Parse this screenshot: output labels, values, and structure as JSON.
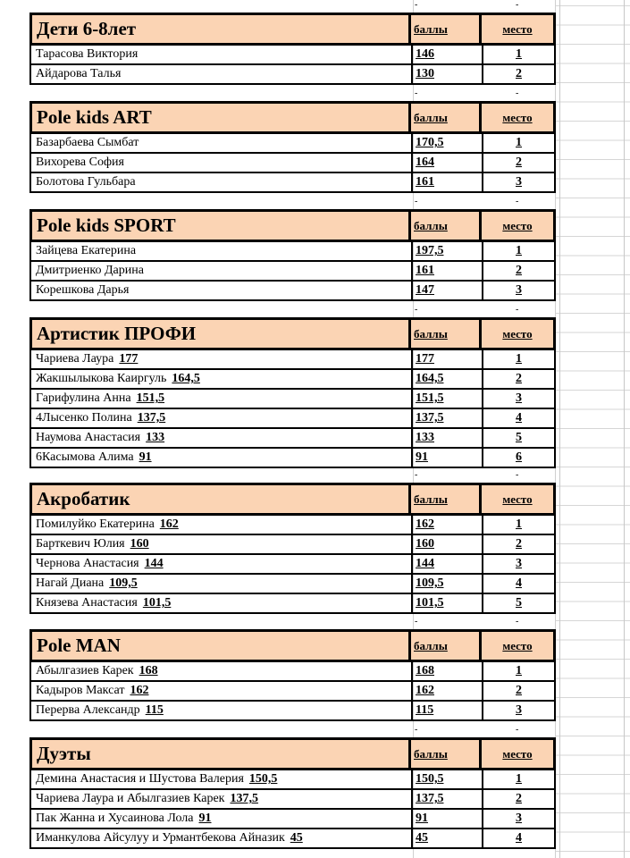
{
  "columns": {
    "score": "баллы",
    "place": "место"
  },
  "sections": [
    {
      "title": "Дети 6-8лет",
      "rows": [
        {
          "name": "Тарасова Виктория",
          "inline_score": "",
          "score": "146",
          "place": "1"
        },
        {
          "name": "Айдарова Талья",
          "inline_score": "",
          "score": "130",
          "place": "2"
        }
      ]
    },
    {
      "title": "Pole kids ART",
      "rows": [
        {
          "name": "Базарбаева Сымбат",
          "inline_score": "",
          "score": "170,5",
          "place": "1"
        },
        {
          "name": "Вихорева София",
          "inline_score": "",
          "score": "164",
          "place": "2"
        },
        {
          "name": "Болотова Гульбара",
          "inline_score": "",
          "score": "161",
          "place": "3"
        }
      ]
    },
    {
      "title": "Pole kids SPORT",
      "rows": [
        {
          "name": "Зайцева Екатерина",
          "inline_score": "",
          "score": "197,5",
          "place": "1"
        },
        {
          "name": "Дмитриенко Дарина",
          "inline_score": "",
          "score": "161",
          "place": "2"
        },
        {
          "name": "Корешкова Дарья",
          "inline_score": "",
          "score": "147",
          "place": "3"
        }
      ]
    },
    {
      "title": "Артистик ПРОФИ",
      "rows": [
        {
          "name": "Чариева Лаура",
          "inline_score": "177",
          "score": "177",
          "place": "1"
        },
        {
          "name": "Жакшылыкова Каиргуль",
          "inline_score": "164,5",
          "score": "164,5",
          "place": "2"
        },
        {
          "name": "Гарифулина  Анна",
          "inline_score": "151,5",
          "score": "151,5",
          "place": "3"
        },
        {
          "name": "4Лысенко Полина",
          "inline_score": "137,5",
          "score": "137,5",
          "place": "4"
        },
        {
          "name": "Наумова Анастасия",
          "inline_score": "133",
          "score": "133",
          "place": "5"
        },
        {
          "name": "6Касымова Алима",
          "inline_score": "91",
          "score": "91",
          "place": "6"
        }
      ]
    },
    {
      "title": "Акробатик",
      "rows": [
        {
          "name": "Помилуйко Екатерина",
          "inline_score": "162",
          "score": "162",
          "place": "1"
        },
        {
          "name": "Барткевич Юлия",
          "inline_score": "160",
          "score": "160",
          "place": "2"
        },
        {
          "name": "Чернова Анастасия",
          "inline_score": "144",
          "score": "144",
          "place": "3"
        },
        {
          "name": "Нагай Диана",
          "inline_score": "109,5",
          "score": "109,5",
          "place": "4"
        },
        {
          "name": "Князева Анастасия",
          "inline_score": "101,5",
          "score": "101,5",
          "place": "5"
        }
      ]
    },
    {
      "title": "Pole MAN",
      "rows": [
        {
          "name": "Абылгазиев Карек",
          "inline_score": "168",
          "score": "168",
          "place": "1"
        },
        {
          "name": "Кадыров Максат",
          "inline_score": "162",
          "score": "162",
          "place": "2"
        },
        {
          "name": "Перерва Александр",
          "inline_score": "115",
          "score": "115",
          "place": "3"
        }
      ]
    },
    {
      "title": "Дуэты",
      "rows": [
        {
          "name": "Демина Анастасия и Шустова Валерия",
          "inline_score": "150,5",
          "score": "150,5",
          "place": "1"
        },
        {
          "name": "Чариева Лаура и Абылгазиев Карек",
          "inline_score": "137,5",
          "score": "137,5",
          "place": "2"
        },
        {
          "name": "Пак Жанна и Хусаинова Лола",
          "inline_score": "91",
          "score": "91",
          "place": "3"
        },
        {
          "name": "Иманкулова Айсулуу и Урмантбекова  Айназик",
          "inline_score": "45",
          "score": "45",
          "place": "4"
        }
      ]
    }
  ]
}
